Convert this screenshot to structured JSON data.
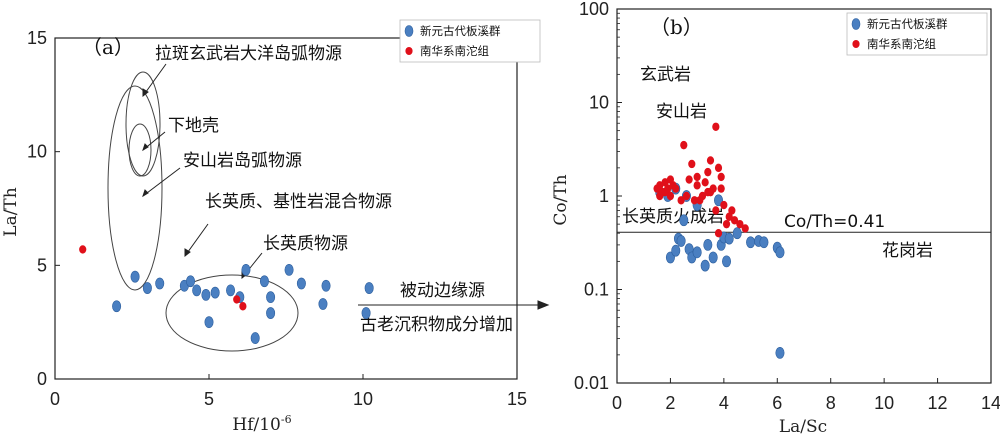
{
  "colors": {
    "blue": "#4a7fc1",
    "red": "#e0101a",
    "axis": "#222222"
  },
  "chart_data": [
    {
      "type": "scatter",
      "panel_label": "（a）",
      "xlabel": "Hf/10",
      "xlabel_sup": "-6",
      "ylabel": "La/Th",
      "xlim": [
        0,
        15
      ],
      "ylim": [
        0,
        15
      ],
      "xticks": [
        "0",
        "5",
        "10",
        "15"
      ],
      "yticks": [
        "0",
        "5",
        "10",
        "15"
      ],
      "legend": {
        "placement": "top-right",
        "entries": [
          "新元古代板溪群",
          "南华系南沱组"
        ]
      },
      "series": [
        {
          "name": "新元古代板溪群",
          "color": "blue",
          "x": [
            2.0,
            2.6,
            3.0,
            3.4,
            4.2,
            4.4,
            4.6,
            4.9,
            5.0,
            5.2,
            5.7,
            6.0,
            6.2,
            6.5,
            6.8,
            7.0,
            7.0,
            7.6,
            8.0,
            8.7,
            8.8,
            10.2,
            10.1
          ],
          "y": [
            3.2,
            4.5,
            4.0,
            4.2,
            4.1,
            4.3,
            3.9,
            3.7,
            2.5,
            3.8,
            3.9,
            3.6,
            4.8,
            1.8,
            4.3,
            3.6,
            2.9,
            4.8,
            4.2,
            3.3,
            4.1,
            4.0,
            2.9
          ]
        },
        {
          "name": "南华系南沱组",
          "color": "red",
          "x": [
            0.9,
            5.9,
            6.1
          ],
          "y": [
            5.7,
            3.5,
            3.2
          ]
        }
      ],
      "annotations": [
        "拉斑玄武岩大洋岛弧物源",
        "下地壳",
        "安山岩岛弧物源",
        "长英质、基性岩混合物源",
        "长英质物源",
        "被动边缘源",
        "古老沉积物成分增加"
      ]
    },
    {
      "type": "scatter",
      "panel_label": "（b）",
      "xlabel": "La/Sc",
      "ylabel": "Co/Th",
      "xlim": [
        0,
        14
      ],
      "ylim": [
        0.01,
        100
      ],
      "yscale": "log",
      "xticks": [
        "0",
        "2",
        "4",
        "6",
        "8",
        "10",
        "12",
        "14"
      ],
      "yticks": [
        "0.01",
        "0.1",
        "1",
        "10",
        "100"
      ],
      "legend": {
        "placement": "top-right",
        "entries": [
          "新元古代板溪群",
          "南华系南沱组"
        ]
      },
      "reference_line": {
        "y": 0.41,
        "label": "Co/Th=0.41"
      },
      "series": [
        {
          "name": "新元古代板溪群",
          "color": "blue",
          "x": [
            1.6,
            1.9,
            2.0,
            2.2,
            2.3,
            2.4,
            2.5,
            2.7,
            2.8,
            3.0,
            3.3,
            3.4,
            3.6,
            3.8,
            3.9,
            4.0,
            4.1,
            4.2,
            4.5,
            5.0,
            5.3,
            5.5,
            6.0,
            6.1,
            6.1,
            3.0,
            2.6,
            2.2
          ],
          "y": [
            1.1,
            1.0,
            0.22,
            0.26,
            0.35,
            0.33,
            0.55,
            0.27,
            0.22,
            0.25,
            0.18,
            0.3,
            0.22,
            0.9,
            0.3,
            0.36,
            0.2,
            0.35,
            0.4,
            0.32,
            0.33,
            0.32,
            0.28,
            0.25,
            0.021,
            0.8,
            1.0,
            1.2
          ]
        },
        {
          "name": "南华系南沱组",
          "color": "red",
          "x": [
            1.5,
            1.6,
            1.7,
            1.8,
            1.9,
            2.0,
            2.1,
            1.6,
            1.8,
            2.0,
            2.2,
            2.5,
            2.6,
            2.8,
            3.0,
            3.1,
            3.2,
            3.4,
            3.5,
            3.6,
            3.7,
            3.8,
            3.9,
            4.0,
            4.2,
            4.4,
            4.6,
            4.8,
            3.0,
            2.9,
            3.3,
            3.5,
            3.7,
            3.9,
            4.1,
            2.4,
            2.7,
            3.4,
            3.8,
            4.3
          ],
          "y": [
            1.2,
            1.3,
            1.1,
            1.4,
            1.2,
            1.0,
            1.3,
            1.0,
            1.1,
            1.5,
            1.2,
            3.5,
            1.0,
            2.2,
            1.3,
            0.9,
            1.0,
            1.8,
            1.1,
            1.2,
            5.5,
            2.0,
            1.6,
            0.8,
            0.6,
            0.55,
            0.5,
            0.45,
            1.6,
            0.9,
            1.4,
            2.4,
            0.7,
            1.2,
            0.5,
            0.9,
            1.5,
            1.1,
            0.4,
            0.7
          ]
        }
      ],
      "annotations": [
        "玄武岩",
        "安山岩",
        "长英质火成岩",
        "花岗岩"
      ]
    }
  ]
}
